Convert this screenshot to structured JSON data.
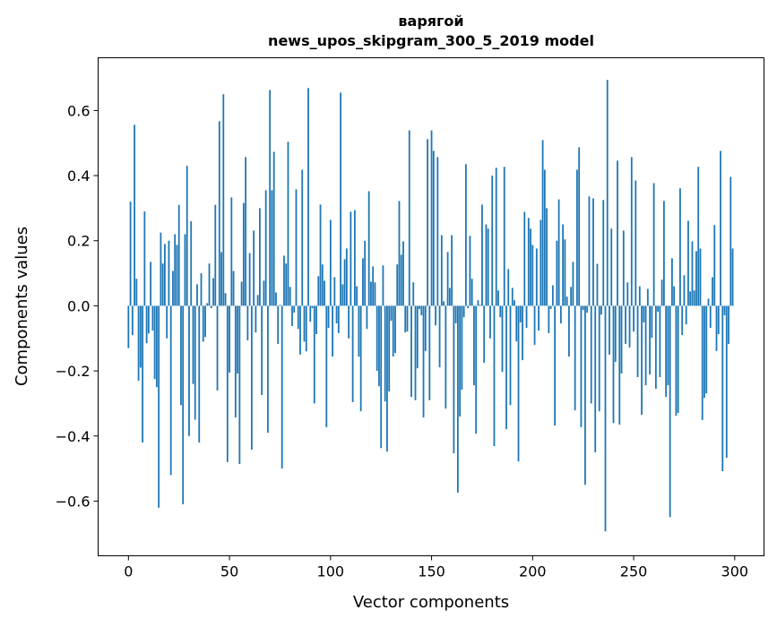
{
  "chart_data": {
    "type": "bar",
    "title": "варягой",
    "subtitle": "news_upos_skipgram_300_5_2019 model",
    "xlabel": "Vector components",
    "ylabel": "Components values",
    "xlim": [
      -15,
      314.5
    ],
    "ylim": [
      -0.768,
      0.762
    ],
    "xticks": [
      0,
      50,
      100,
      150,
      200,
      250,
      300
    ],
    "xtick_labels": [
      "0",
      "50",
      "100",
      "150",
      "200",
      "250",
      "300"
    ],
    "yticks": [
      -0.6,
      -0.4,
      -0.2,
      0.0,
      0.2,
      0.4,
      0.6
    ],
    "ytick_labels": [
      "−0.6",
      "−0.4",
      "−0.2",
      "0.0",
      "0.2",
      "0.4",
      "0.6"
    ],
    "grid": false,
    "bar_color": "#1f77b4",
    "values": [
      -0.13,
      0.32,
      -0.09,
      0.556,
      0.083,
      -0.23,
      -0.19,
      -0.42,
      0.29,
      -0.115,
      -0.085,
      0.135,
      -0.076,
      -0.225,
      -0.25,
      -0.62,
      0.225,
      0.13,
      0.19,
      -0.1,
      0.2,
      -0.52,
      0.107,
      0.22,
      0.187,
      0.31,
      -0.305,
      -0.61,
      0.22,
      0.43,
      -0.4,
      0.26,
      -0.24,
      -0.35,
      0.066,
      -0.42,
      0.1,
      -0.11,
      -0.096,
      0.008,
      0.13,
      -0.007,
      0.085,
      0.31,
      -0.26,
      0.567,
      0.165,
      0.65,
      0.039,
      -0.48,
      -0.205,
      0.333,
      0.107,
      -0.343,
      -0.208,
      -0.486,
      0.074,
      0.316,
      0.457,
      -0.106,
      0.162,
      -0.442,
      0.231,
      -0.082,
      0.033,
      0.3,
      -0.274,
      0.077,
      0.355,
      -0.39,
      0.663,
      0.355,
      0.473,
      0.041,
      -0.117,
      0.003,
      -0.5,
      0.154,
      0.13,
      0.504,
      0.058,
      -0.062,
      -0.021,
      0.358,
      -0.071,
      -0.15,
      0.418,
      -0.11,
      -0.14,
      0.669,
      -0.049,
      -0.007,
      -0.3,
      -0.087,
      0.091,
      0.311,
      0.127,
      0.077,
      -0.373,
      -0.068,
      0.264,
      -0.156,
      0.088,
      -0.054,
      -0.084,
      0.655,
      0.066,
      0.143,
      0.176,
      -0.1,
      0.289,
      -0.296,
      0.294,
      0.06,
      -0.156,
      -0.324,
      0.146,
      0.2,
      -0.071,
      0.352,
      0.074,
      0.121,
      0.072,
      -0.2,
      -0.247,
      -0.437,
      0.124,
      -0.294,
      -0.448,
      -0.263,
      -0.046,
      -0.156,
      -0.145,
      0.127,
      0.322,
      0.157,
      0.198,
      -0.082,
      -0.079,
      0.539,
      -0.28,
      0.072,
      -0.29,
      -0.192,
      -0.01,
      -0.029,
      -0.343,
      -0.139,
      0.512,
      -0.29,
      0.539,
      0.476,
      -0.06,
      0.457,
      -0.189,
      0.217,
      0.014,
      -0.316,
      0.165,
      0.055,
      0.217,
      -0.453,
      -0.054,
      -0.574,
      -0.34,
      -0.258,
      -0.035,
      0.435,
      -0.007,
      0.215,
      0.083,
      -0.244,
      -0.393,
      0.017,
      0.003,
      0.311,
      -0.175,
      0.25,
      0.237,
      -0.1,
      0.4,
      -0.431,
      0.424,
      0.047,
      -0.035,
      -0.203,
      0.427,
      -0.379,
      0.113,
      -0.305,
      0.055,
      0.017,
      -0.109,
      -0.478,
      -0.051,
      -0.167,
      0.289,
      -0.068,
      0.27,
      0.237,
      0.187,
      -0.12,
      0.176,
      -0.076,
      0.264,
      0.509,
      0.418,
      0.3,
      -0.084,
      -0.01,
      0.063,
      -0.368,
      0.2,
      0.327,
      -0.054,
      0.25,
      0.204,
      0.028,
      -0.156,
      0.058,
      0.135,
      -0.321,
      0.418,
      0.487,
      -0.373,
      -0.013,
      -0.55,
      -0.021,
      0.336,
      -0.3,
      0.33,
      -0.45,
      0.129,
      -0.324,
      -0.027,
      0.325,
      -0.693,
      0.694,
      -0.15,
      0.237,
      -0.36,
      -0.172,
      0.446,
      -0.365,
      -0.208,
      0.231,
      -0.117,
      0.072,
      -0.128,
      0.457,
      -0.079,
      0.385,
      -0.219,
      0.06,
      -0.335,
      -0.051,
      -0.244,
      0.052,
      -0.211,
      -0.098,
      0.377,
      -0.255,
      -0.018,
      -0.219,
      0.08,
      0.322,
      -0.28,
      -0.244,
      -0.649,
      0.146,
      0.06,
      -0.338,
      -0.329,
      0.361,
      -0.09,
      0.094,
      -0.057,
      0.261,
      0.044,
      0.198,
      0.047,
      0.168,
      0.427,
      0.176,
      -0.351,
      -0.283,
      -0.269,
      0.022,
      -0.068,
      0.088,
      0.248,
      -0.139,
      -0.087,
      0.476,
      -0.508,
      -0.029,
      -0.467,
      -0.117,
      0.396,
      0.176
    ]
  }
}
